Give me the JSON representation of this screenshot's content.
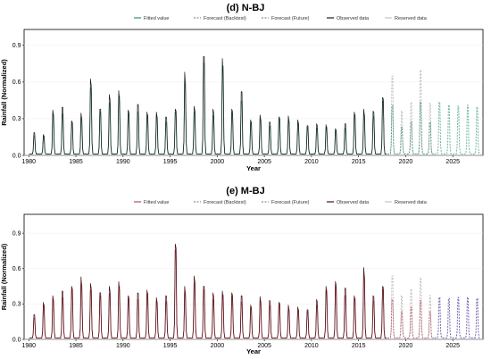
{
  "chart_data": [
    {
      "type": "line",
      "title": "(d) N-BJ",
      "xlabel": "Year",
      "ylabel": "Rainfall (Normalized)",
      "xlim": [
        1979.5,
        2028.2
      ],
      "ylim": [
        0,
        1.03
      ],
      "xticks": [
        "1980",
        "1985",
        "1990",
        "1995",
        "2000",
        "2005",
        "2010",
        "2015",
        "2020",
        "2025"
      ],
      "yticks": [
        "0.0",
        "0.3",
        "0.6",
        "0.9"
      ],
      "legend_position": "top",
      "legend": [
        {
          "label": "Fitted value",
          "color": "#3a8f6e",
          "style": "solid"
        },
        {
          "label": "Forecast (Backtest)",
          "color": "#8f8f8f",
          "style": "dashed"
        },
        {
          "label": "Forecast (Future)",
          "color": "#8f8f8f",
          "style": "dashed"
        },
        {
          "label": "Observed data",
          "color": "#1a1a1a",
          "style": "solid"
        },
        {
          "label": "Reserved data",
          "color": "#c4c4c4",
          "style": "solid"
        }
      ],
      "series_colors": {
        "fitted": "#3a8f6e",
        "observed": "#1a1a1a",
        "backtest": "#bcbcbc",
        "future": "#6fb89a"
      },
      "annual_peaks": [
        0.22,
        0.2,
        0.45,
        0.48,
        0.34,
        0.42,
        0.77,
        0.46,
        0.61,
        0.65,
        0.45,
        0.51,
        0.43,
        0.43,
        0.38,
        0.46,
        0.84,
        0.49,
        1.0,
        0.46,
        0.98,
        0.46,
        0.64,
        0.35,
        0.4,
        0.33,
        0.38,
        0.39,
        0.35,
        0.29,
        0.31,
        0.3,
        0.26,
        0.31,
        0.43,
        0.46,
        0.44,
        0.58,
        0.46,
        0.52
      ],
      "reserved_peaks": [
        0.8,
        0.44,
        0.53,
        0.86,
        0.52
      ],
      "future_peaks": [
        0.53,
        0.5,
        0.49,
        0.5,
        0.48
      ],
      "observed_until": 2018.0,
      "backtest_range": [
        2018.0,
        2023.0
      ],
      "future_range": [
        2023.0,
        2028.0
      ]
    },
    {
      "type": "line",
      "title": "(e) M-BJ",
      "xlabel": "Year",
      "ylabel": "Rainfall (Normalized)",
      "xlim": [
        1979.5,
        2028.2
      ],
      "ylim": [
        0,
        1.06
      ],
      "xticks": [
        "1980",
        "1985",
        "1990",
        "1995",
        "2000",
        "2005",
        "2010",
        "2015",
        "2020",
        "2025"
      ],
      "yticks": [
        "0.0",
        "0.3",
        "0.6",
        "0.9"
      ],
      "legend_position": "top",
      "legend": [
        {
          "label": "Fitted value",
          "color": "#b5525e",
          "style": "solid"
        },
        {
          "label": "Forecast (Backtest)",
          "color": "#8f8f8f",
          "style": "dashed"
        },
        {
          "label": "Forecast (Future)",
          "color": "#8f8f8f",
          "style": "dashed"
        },
        {
          "label": "Observed data",
          "color": "#4a0e14",
          "style": "solid"
        },
        {
          "label": "Reserved data",
          "color": "#c4c4c4",
          "style": "solid"
        }
      ],
      "series_colors": {
        "fitted": "#b5525e",
        "observed": "#4a0e14",
        "backtest": "#bcbcbc",
        "future": "#7a66b3"
      },
      "annual_peaks": [
        0.25,
        0.38,
        0.45,
        0.5,
        0.55,
        0.65,
        0.58,
        0.48,
        0.55,
        0.6,
        0.45,
        0.48,
        0.51,
        0.43,
        0.45,
        1.0,
        0.55,
        0.66,
        0.55,
        0.48,
        0.5,
        0.48,
        0.45,
        0.35,
        0.44,
        0.4,
        0.38,
        0.35,
        0.33,
        0.3,
        0.41,
        0.55,
        0.6,
        0.53,
        0.45,
        0.75,
        0.45,
        0.55,
        0.5,
        0.42
      ],
      "reserved_peaks": [
        0.66,
        0.45,
        0.52,
        0.64,
        0.45
      ],
      "future_peaks": [
        0.43,
        0.42,
        0.43,
        0.43,
        0.42
      ],
      "observed_until": 2018.0,
      "backtest_range": [
        2018.0,
        2023.0
      ],
      "future_range": [
        2023.0,
        2028.0
      ]
    }
  ]
}
